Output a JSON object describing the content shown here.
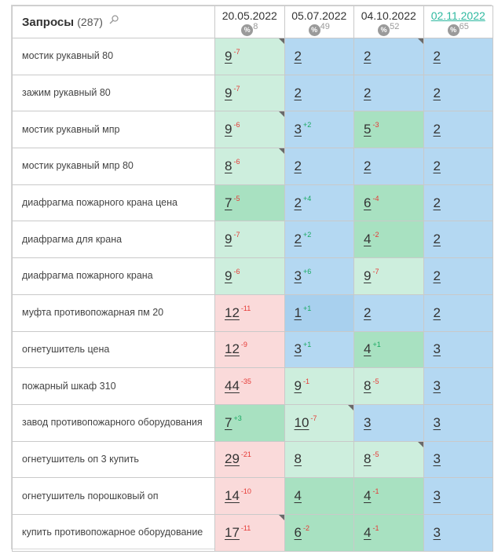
{
  "header": {
    "title": "Запросы",
    "count": "(287)",
    "dates": [
      {
        "label": "20.05.2022",
        "pct": "8",
        "link": false
      },
      {
        "label": "05.07.2022",
        "pct": "49",
        "link": false
      },
      {
        "label": "04.10.2022",
        "pct": "52",
        "link": false
      },
      {
        "label": "02.11.2022",
        "pct": "65",
        "link": true
      }
    ],
    "pct_symbol": "%"
  },
  "colors": {
    "top": "#cdeedd",
    "good": "#a8e1c1",
    "mid": "#a8d0ee",
    "light_blue": "#b4d8f2",
    "bad": "#fadada",
    "up": "#18a860",
    "down": "#e53935",
    "link": "#2fb9a0"
  },
  "rows": [
    {
      "query": "мостик рукавный 80",
      "cells": [
        {
          "v": "9",
          "d": "-7",
          "bg": "top",
          "c": true
        },
        {
          "v": "2",
          "d": "",
          "bg": "light_blue",
          "c": false
        },
        {
          "v": "2",
          "d": "",
          "bg": "light_blue",
          "c": true
        },
        {
          "v": "2",
          "d": "",
          "bg": "light_blue",
          "c": false
        }
      ]
    },
    {
      "query": "зажим рукавный 80",
      "cells": [
        {
          "v": "9",
          "d": "-7",
          "bg": "top",
          "c": false
        },
        {
          "v": "2",
          "d": "",
          "bg": "light_blue",
          "c": false
        },
        {
          "v": "2",
          "d": "",
          "bg": "light_blue",
          "c": false
        },
        {
          "v": "2",
          "d": "",
          "bg": "light_blue",
          "c": false
        }
      ]
    },
    {
      "query": "мостик рукавный мпр",
      "cells": [
        {
          "v": "9",
          "d": "-6",
          "bg": "top",
          "c": true
        },
        {
          "v": "3",
          "d": "+2",
          "bg": "light_blue",
          "c": false
        },
        {
          "v": "5",
          "d": "-3",
          "bg": "good",
          "c": false
        },
        {
          "v": "2",
          "d": "",
          "bg": "light_blue",
          "c": false
        }
      ]
    },
    {
      "query": "мостик рукавный мпр 80",
      "cells": [
        {
          "v": "8",
          "d": "-6",
          "bg": "top",
          "c": true
        },
        {
          "v": "2",
          "d": "",
          "bg": "light_blue",
          "c": false
        },
        {
          "v": "2",
          "d": "",
          "bg": "light_blue",
          "c": false
        },
        {
          "v": "2",
          "d": "",
          "bg": "light_blue",
          "c": false
        }
      ]
    },
    {
      "query": "диафрагма пожарного крана цена",
      "cells": [
        {
          "v": "7",
          "d": "-5",
          "bg": "good",
          "c": false
        },
        {
          "v": "2",
          "d": "+4",
          "bg": "light_blue",
          "c": false
        },
        {
          "v": "6",
          "d": "-4",
          "bg": "good",
          "c": false
        },
        {
          "v": "2",
          "d": "",
          "bg": "light_blue",
          "c": false
        }
      ]
    },
    {
      "query": "диафрагма для крана",
      "cells": [
        {
          "v": "9",
          "d": "-7",
          "bg": "top",
          "c": false
        },
        {
          "v": "2",
          "d": "+2",
          "bg": "light_blue",
          "c": false
        },
        {
          "v": "4",
          "d": "-2",
          "bg": "good",
          "c": false
        },
        {
          "v": "2",
          "d": "",
          "bg": "light_blue",
          "c": false
        }
      ]
    },
    {
      "query": "диафрагма пожарного крана",
      "cells": [
        {
          "v": "9",
          "d": "-6",
          "bg": "top",
          "c": false
        },
        {
          "v": "3",
          "d": "+6",
          "bg": "light_blue",
          "c": false
        },
        {
          "v": "9",
          "d": "-7",
          "bg": "top",
          "c": false
        },
        {
          "v": "2",
          "d": "",
          "bg": "light_blue",
          "c": false
        }
      ]
    },
    {
      "query": "муфта противопожарная пм 20",
      "cells": [
        {
          "v": "12",
          "d": "-11",
          "bg": "bad",
          "c": false
        },
        {
          "v": "1",
          "d": "+1",
          "bg": "mid",
          "c": false
        },
        {
          "v": "2",
          "d": "",
          "bg": "light_blue",
          "c": false
        },
        {
          "v": "2",
          "d": "",
          "bg": "light_blue",
          "c": false
        }
      ]
    },
    {
      "query": "огнетушитель цена",
      "cells": [
        {
          "v": "12",
          "d": "-9",
          "bg": "bad",
          "c": false
        },
        {
          "v": "3",
          "d": "+1",
          "bg": "light_blue",
          "c": false
        },
        {
          "v": "4",
          "d": "+1",
          "bg": "good",
          "c": false
        },
        {
          "v": "3",
          "d": "",
          "bg": "light_blue",
          "c": false
        }
      ]
    },
    {
      "query": "пожарный шкаф 310",
      "cells": [
        {
          "v": "44",
          "d": "-35",
          "bg": "bad",
          "c": false
        },
        {
          "v": "9",
          "d": "-1",
          "bg": "top",
          "c": false
        },
        {
          "v": "8",
          "d": "-5",
          "bg": "top",
          "c": false
        },
        {
          "v": "3",
          "d": "",
          "bg": "light_blue",
          "c": false
        }
      ]
    },
    {
      "query": "завод противопожарного оборудования",
      "cells": [
        {
          "v": "7",
          "d": "+3",
          "bg": "good",
          "c": false
        },
        {
          "v": "10",
          "d": "-7",
          "bg": "top",
          "c": true
        },
        {
          "v": "3",
          "d": "",
          "bg": "light_blue",
          "c": false
        },
        {
          "v": "3",
          "d": "",
          "bg": "light_blue",
          "c": false
        }
      ]
    },
    {
      "query": "огнетушитель оп 3 купить",
      "cells": [
        {
          "v": "29",
          "d": "-21",
          "bg": "bad",
          "c": false
        },
        {
          "v": "8",
          "d": "",
          "bg": "top",
          "c": false
        },
        {
          "v": "8",
          "d": "-5",
          "bg": "top",
          "c": true
        },
        {
          "v": "3",
          "d": "",
          "bg": "light_blue",
          "c": false
        }
      ]
    },
    {
      "query": "огнетушитель порошковый оп",
      "cells": [
        {
          "v": "14",
          "d": "-10",
          "bg": "bad",
          "c": false
        },
        {
          "v": "4",
          "d": "",
          "bg": "good",
          "c": false
        },
        {
          "v": "4",
          "d": "-1",
          "bg": "good",
          "c": false
        },
        {
          "v": "3",
          "d": "",
          "bg": "light_blue",
          "c": false
        }
      ]
    },
    {
      "query": "купить противопожарное оборудование",
      "cells": [
        {
          "v": "17",
          "d": "-11",
          "bg": "bad",
          "c": true
        },
        {
          "v": "6",
          "d": "-2",
          "bg": "good",
          "c": false
        },
        {
          "v": "4",
          "d": "-1",
          "bg": "good",
          "c": false
        },
        {
          "v": "3",
          "d": "",
          "bg": "light_blue",
          "c": false
        }
      ]
    }
  ]
}
